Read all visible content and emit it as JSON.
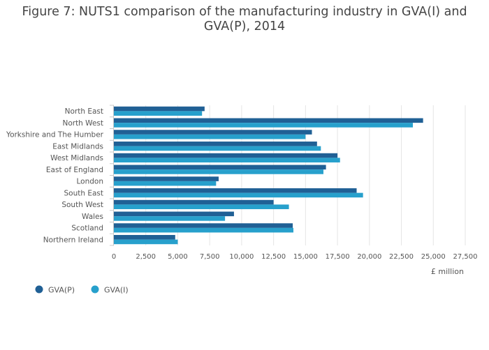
{
  "chart_data": {
    "type": "bar",
    "orientation": "horizontal",
    "title_lines": [
      "Figure 7: NUTS1 comparison of the manufacturing industry in GVA(I) and",
      "GVA(P), 2014"
    ],
    "categories": [
      "North East",
      "North West",
      "Yorkshire and The Humber",
      "East Midlands",
      "West Midlands",
      "East of England",
      "London",
      "South East",
      "South West",
      "Wales",
      "Scotland",
      "Northern Ireland"
    ],
    "series": [
      {
        "name": "GVA(P)",
        "color": "#206095",
        "values": [
          7100,
          24200,
          15500,
          15900,
          17500,
          16600,
          8200,
          19000,
          12500,
          9400,
          14000,
          4800
        ]
      },
      {
        "name": "GVA(I)",
        "color": "#27a0cc",
        "values": [
          6900,
          23400,
          15000,
          16200,
          17700,
          16400,
          8000,
          19500,
          13700,
          8700,
          14050,
          5000
        ]
      }
    ],
    "xlim": [
      0,
      27500
    ],
    "x_ticks": [
      0,
      2500,
      5000,
      7500,
      10000,
      12500,
      15000,
      17500,
      20000,
      22500,
      25000,
      27500
    ],
    "x_tick_labels": [
      "0",
      "2,500",
      "5,000",
      "7,500",
      "10,000",
      "12,500",
      "15,000",
      "17,500",
      "20,000",
      "22,500",
      "25,000",
      "27,500"
    ],
    "xlabel": "£ million",
    "grid": true,
    "legend_position": "bottom-left"
  }
}
